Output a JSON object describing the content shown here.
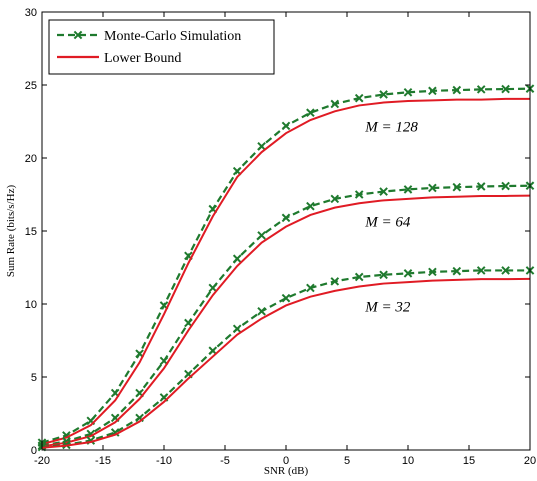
{
  "chart_data": {
    "type": "line",
    "xlabel": "SNR (dB)",
    "ylabel": "Sum Rate (bits/s/Hz)",
    "xlim": [
      -20,
      20
    ],
    "ylim": [
      0,
      30
    ],
    "xticks": [
      -20,
      -15,
      -10,
      -5,
      0,
      5,
      10,
      15,
      20
    ],
    "yticks": [
      0,
      5,
      10,
      15,
      20,
      25,
      30
    ],
    "grid": false,
    "legend_position": "top-left",
    "legend": [
      {
        "label": "Monte-Carlo Simulation",
        "style": "dashed-x",
        "color": "#1f7a2e"
      },
      {
        "label": "Lower Bound",
        "style": "solid",
        "color": "#e01b24"
      }
    ],
    "annotations": [
      {
        "text": "M = 128",
        "x": 6.5,
        "y": 21.8
      },
      {
        "text": "M = 64",
        "x": 6.5,
        "y": 15.3
      },
      {
        "text": "M = 32",
        "x": 6.5,
        "y": 9.5
      }
    ],
    "x": [
      -20,
      -18,
      -16,
      -14,
      -12,
      -10,
      -8,
      -6,
      -4,
      -2,
      0,
      2,
      4,
      6,
      8,
      10,
      12,
      14,
      16,
      18,
      20
    ],
    "series": [
      {
        "name": "Monte-Carlo Simulation",
        "group": "M=128",
        "values": [
          0.5,
          1.0,
          2.0,
          3.9,
          6.6,
          9.9,
          13.3,
          16.5,
          19.1,
          20.8,
          22.2,
          23.1,
          23.7,
          24.1,
          24.35,
          24.5,
          24.6,
          24.65,
          24.7,
          24.72,
          24.75
        ]
      },
      {
        "name": "Lower Bound",
        "group": "M=128",
        "values": [
          0.4,
          0.85,
          1.7,
          3.4,
          6.0,
          9.3,
          12.8,
          16.0,
          18.7,
          20.4,
          21.7,
          22.6,
          23.2,
          23.6,
          23.8,
          23.9,
          23.95,
          24.0,
          24.0,
          24.05,
          24.05
        ]
      },
      {
        "name": "Monte-Carlo Simulation",
        "group": "M=64",
        "values": [
          0.3,
          0.6,
          1.1,
          2.2,
          3.9,
          6.1,
          8.7,
          11.1,
          13.1,
          14.7,
          15.9,
          16.7,
          17.2,
          17.5,
          17.7,
          17.85,
          17.95,
          18.0,
          18.05,
          18.08,
          18.1
        ]
      },
      {
        "name": "Lower Bound",
        "group": "M=64",
        "values": [
          0.25,
          0.5,
          0.95,
          1.9,
          3.5,
          5.6,
          8.2,
          10.6,
          12.6,
          14.2,
          15.3,
          16.1,
          16.6,
          16.9,
          17.1,
          17.2,
          17.3,
          17.35,
          17.4,
          17.4,
          17.42
        ]
      },
      {
        "name": "Monte-Carlo Simulation",
        "group": "M=32",
        "values": [
          0.2,
          0.35,
          0.65,
          1.2,
          2.2,
          3.6,
          5.2,
          6.8,
          8.3,
          9.5,
          10.4,
          11.1,
          11.55,
          11.85,
          12.0,
          12.1,
          12.2,
          12.25,
          12.3,
          12.3,
          12.3
        ]
      },
      {
        "name": "Lower Bound",
        "group": "M=32",
        "values": [
          0.15,
          0.3,
          0.55,
          1.05,
          1.95,
          3.3,
          4.9,
          6.4,
          7.9,
          9.0,
          9.9,
          10.5,
          10.9,
          11.2,
          11.4,
          11.5,
          11.6,
          11.65,
          11.7,
          11.7,
          11.72
        ]
      }
    ],
    "colors": {
      "simulation": "#1f7a2e",
      "bound": "#e01b24",
      "axis": "#000000"
    }
  }
}
